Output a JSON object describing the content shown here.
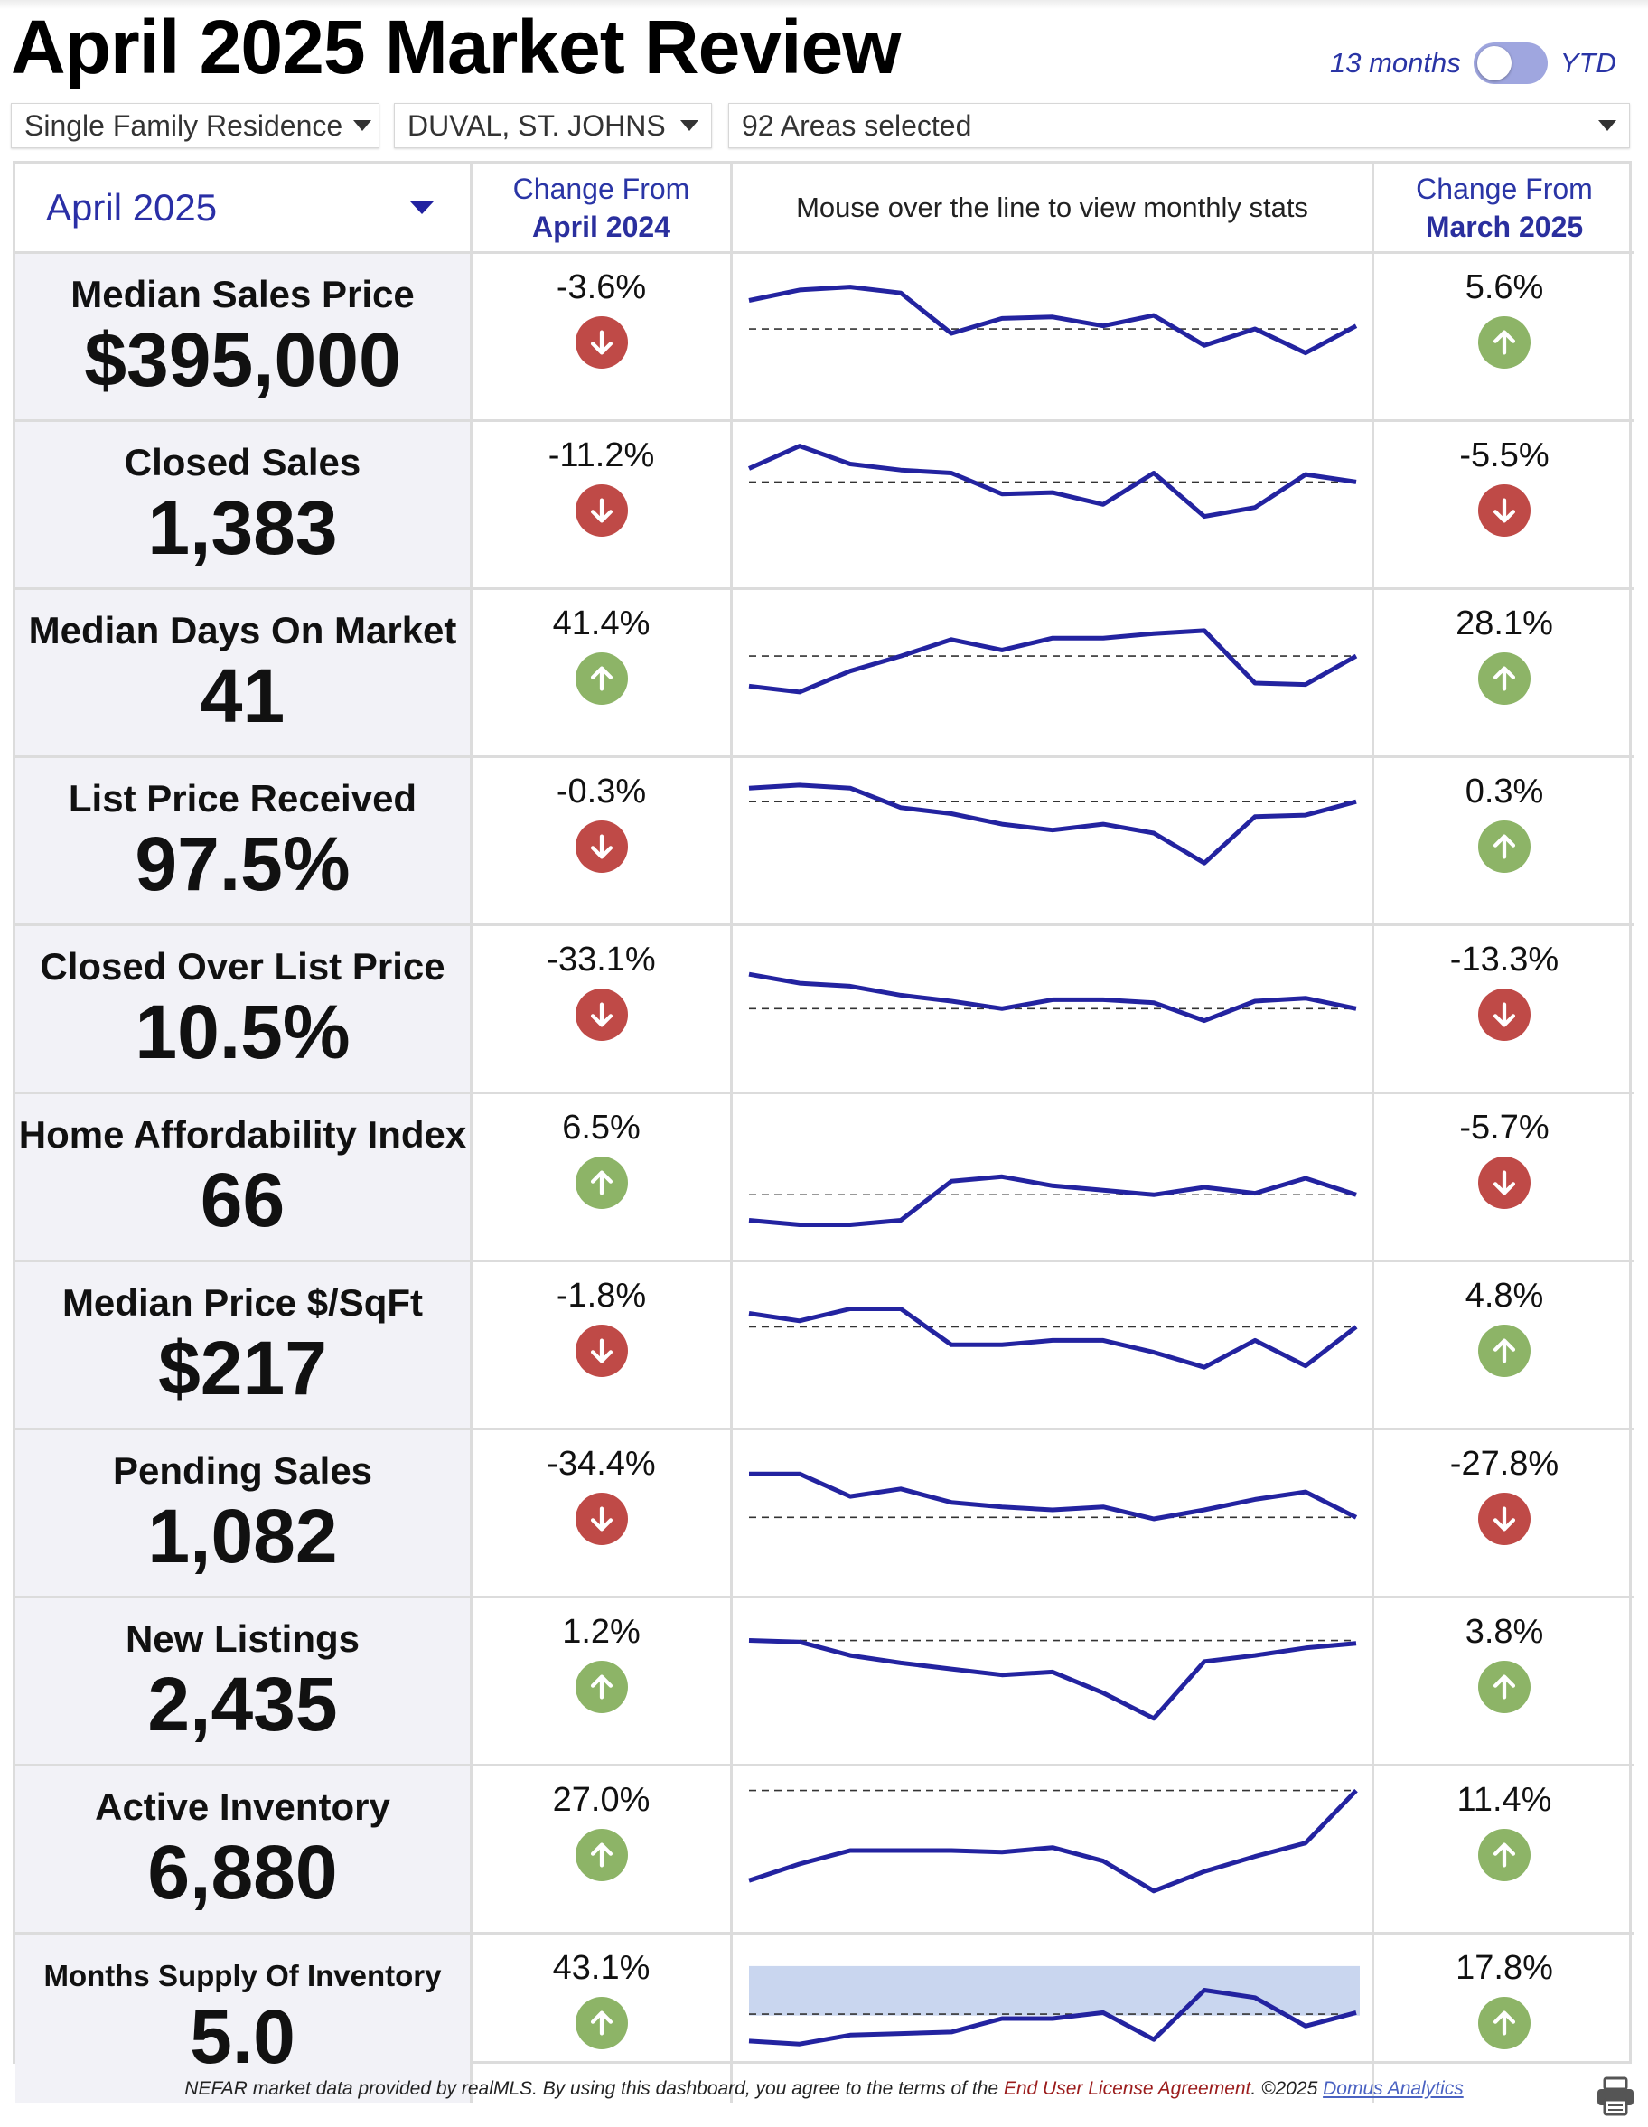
{
  "header": {
    "title": "April 2025 Market Review",
    "toggle_left_label": "13 months",
    "toggle_right_label": "YTD"
  },
  "filters": {
    "property_type": "Single Family Residence",
    "counties": "DUVAL, ST. JOHNS",
    "areas": "92 Areas selected"
  },
  "table_header": {
    "month": "April 2025",
    "change_year_label": "Change From",
    "change_year_period": "April 2024",
    "sparkline_hint": "Mouse over the line to view monthly stats",
    "change_month_label": "Change From",
    "change_month_period": "March 2025"
  },
  "colors": {
    "accent": "#2a2fa6",
    "line": "#2323a0",
    "up": "#8db467",
    "down": "#bf4a47",
    "band": "#c9d6ef"
  },
  "metrics": [
    {
      "label": "Median Sales Price",
      "value": "$395,000",
      "yoy": "-3.6%",
      "yoy_dir": "down",
      "mom": "5.6%",
      "mom_dir": "up",
      "trend": [
        0.25,
        0.18,
        0.16,
        0.2,
        0.47,
        0.37,
        0.36,
        0.42,
        0.35,
        0.55,
        0.44,
        0.6,
        0.42
      ],
      "baseline": 0.44
    },
    {
      "label": "Closed Sales",
      "value": "1,383",
      "yoy": "-11.2%",
      "yoy_dir": "down",
      "mom": "-5.5%",
      "mom_dir": "down",
      "trend": [
        0.25,
        0.1,
        0.22,
        0.26,
        0.28,
        0.42,
        0.41,
        0.49,
        0.28,
        0.57,
        0.51,
        0.29,
        0.34
      ],
      "baseline": 0.34
    },
    {
      "label": "Median Days On Market",
      "value": "41",
      "yoy": "41.4%",
      "yoy_dir": "up",
      "mom": "28.1%",
      "mom_dir": "up",
      "trend": [
        0.58,
        0.62,
        0.48,
        0.38,
        0.27,
        0.34,
        0.26,
        0.26,
        0.23,
        0.21,
        0.56,
        0.57,
        0.38
      ],
      "baseline": 0.38
    },
    {
      "label": "List Price Received",
      "value": "97.5%",
      "yoy": "-0.3%",
      "yoy_dir": "down",
      "mom": "0.3%",
      "mom_dir": "up",
      "trend": [
        0.14,
        0.12,
        0.14,
        0.27,
        0.31,
        0.38,
        0.42,
        0.38,
        0.44,
        0.64,
        0.33,
        0.32,
        0.23
      ],
      "baseline": 0.23
    },
    {
      "label": "Closed Over List Price",
      "value": "10.5%",
      "yoy": "-33.1%",
      "yoy_dir": "down",
      "mom": "-13.3%",
      "mom_dir": "down",
      "trend": [
        0.26,
        0.32,
        0.34,
        0.4,
        0.44,
        0.49,
        0.43,
        0.43,
        0.45,
        0.57,
        0.44,
        0.42,
        0.49
      ],
      "baseline": 0.49
    },
    {
      "label": "Home Affordability Index",
      "value": "66",
      "yoy": "6.5%",
      "yoy_dir": "up",
      "mom": "-5.7%",
      "mom_dir": "down",
      "trend": [
        0.78,
        0.81,
        0.81,
        0.78,
        0.52,
        0.49,
        0.55,
        0.58,
        0.61,
        0.56,
        0.6,
        0.5,
        0.61
      ],
      "baseline": 0.61
    },
    {
      "label": "Median Price $/SqFt",
      "value": "$217",
      "yoy": "-1.8%",
      "yoy_dir": "down",
      "mom": "4.8%",
      "mom_dir": "up",
      "trend": [
        0.28,
        0.33,
        0.25,
        0.25,
        0.49,
        0.49,
        0.46,
        0.46,
        0.54,
        0.64,
        0.46,
        0.63,
        0.37
      ],
      "baseline": 0.37
    },
    {
      "label": "Pending Sales",
      "value": "1,082",
      "yoy": "-34.4%",
      "yoy_dir": "down",
      "mom": "-27.8%",
      "mom_dir": "down",
      "trend": [
        0.23,
        0.23,
        0.38,
        0.33,
        0.42,
        0.45,
        0.47,
        0.45,
        0.53,
        0.47,
        0.4,
        0.35,
        0.52
      ],
      "baseline": 0.52
    },
    {
      "label": "New Listings",
      "value": "2,435",
      "yoy": "1.2%",
      "yoy_dir": "up",
      "mom": "3.8%",
      "mom_dir": "up",
      "trend": [
        0.22,
        0.23,
        0.32,
        0.37,
        0.41,
        0.45,
        0.43,
        0.57,
        0.74,
        0.36,
        0.32,
        0.27,
        0.24
      ],
      "baseline": 0.22
    },
    {
      "label": "Active Inventory",
      "value": "6,880",
      "yoy": "27.0%",
      "yoy_dir": "up",
      "mom": "11.4%",
      "mom_dir": "up",
      "trend": [
        0.7,
        0.59,
        0.5,
        0.5,
        0.5,
        0.51,
        0.48,
        0.57,
        0.77,
        0.64,
        0.54,
        0.45,
        0.1
      ],
      "baseline": 0.1
    },
    {
      "label": "Months Supply Of Inventory",
      "value": "5.0",
      "yoy": "43.1%",
      "yoy_dir": "up",
      "mom": "17.8%",
      "mom_dir": "up",
      "trend": [
        0.65,
        0.67,
        0.61,
        0.6,
        0.59,
        0.5,
        0.5,
        0.46,
        0.64,
        0.31,
        0.36,
        0.55,
        0.46
      ],
      "baseline": 0.47,
      "band": [
        0.15,
        0.48
      ]
    }
  ],
  "footer": {
    "text": "NEFAR market data provided by realMLS.  By using this dashboard, you agree to the terms of the",
    "eula": "End User License Agreement",
    "copyright": ".  ©2025",
    "domus": "Domus Analytics"
  }
}
